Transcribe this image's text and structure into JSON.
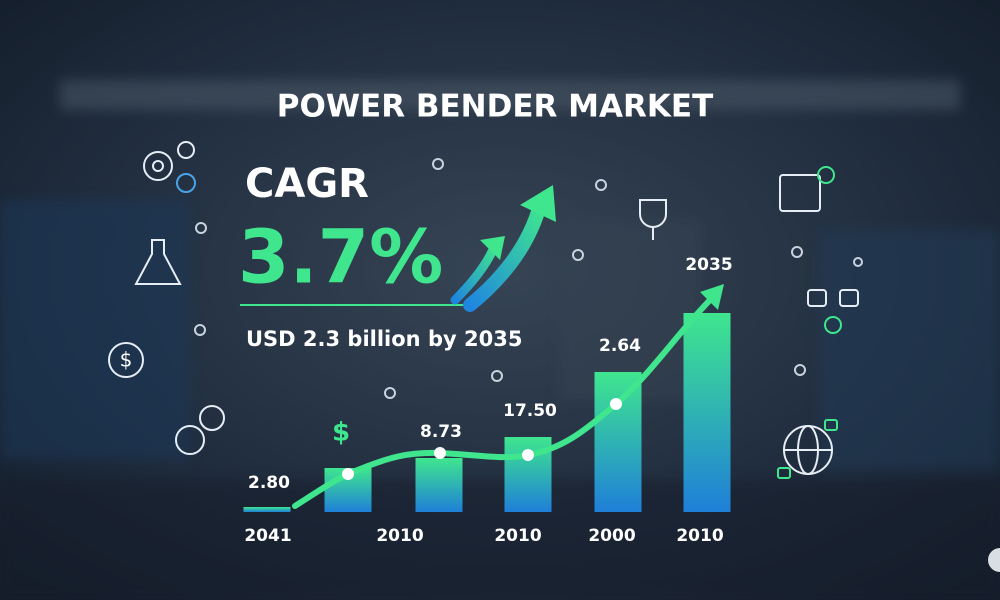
{
  "chart_data": {
    "type": "bar",
    "title": "POWER BENDER MARKET",
    "cagr_label": "CAGR",
    "cagr_value": "3.7%",
    "subtitle": "USD 2.3 billion by 2035",
    "categories": [
      "2041",
      null,
      "2010",
      "2010",
      "2000",
      "2010"
    ],
    "values": [
      5,
      44,
      54,
      75,
      140,
      199
    ],
    "bar_labels": [
      "2.80",
      null,
      "8.73",
      "17.50",
      "2.64",
      "2035"
    ],
    "marker_text": "$",
    "ylim": [
      0,
      220
    ],
    "colors": [
      "#3fe68e",
      "#1f7fd8"
    ]
  }
}
